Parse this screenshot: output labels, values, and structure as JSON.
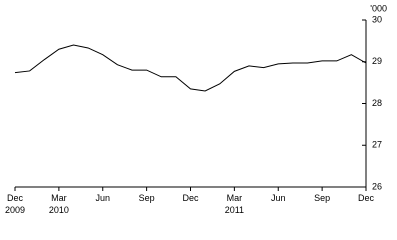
{
  "chart_data": {
    "type": "line",
    "y_unit": "'000",
    "categories": [
      "Dec",
      null,
      null,
      "Mar",
      null,
      null,
      "Jun",
      null,
      null,
      "Sep",
      null,
      null,
      "Dec",
      null,
      null,
      "Mar",
      null,
      null,
      "Jun",
      null,
      null,
      "Sep",
      null,
      null,
      "Dec"
    ],
    "category_years": [
      "2009",
      null,
      null,
      "2010",
      null,
      null,
      null,
      null,
      null,
      null,
      null,
      null,
      null,
      null,
      null,
      "2011",
      null,
      null,
      null,
      null,
      null,
      null,
      null,
      null,
      null
    ],
    "series": [
      {
        "color": "#000000",
        "values": [
          28.74,
          28.78,
          29.05,
          29.3,
          29.4,
          29.33,
          29.17,
          28.93,
          28.8,
          28.8,
          28.64,
          28.64,
          28.35,
          28.3,
          28.47,
          28.77,
          28.9,
          28.86,
          28.95,
          28.97,
          28.97,
          29.02,
          29.02,
          29.17,
          28.97
        ]
      }
    ],
    "ylim": [
      26,
      30
    ],
    "yticks": [
      26,
      27,
      28,
      29,
      30
    ],
    "grid": false
  }
}
